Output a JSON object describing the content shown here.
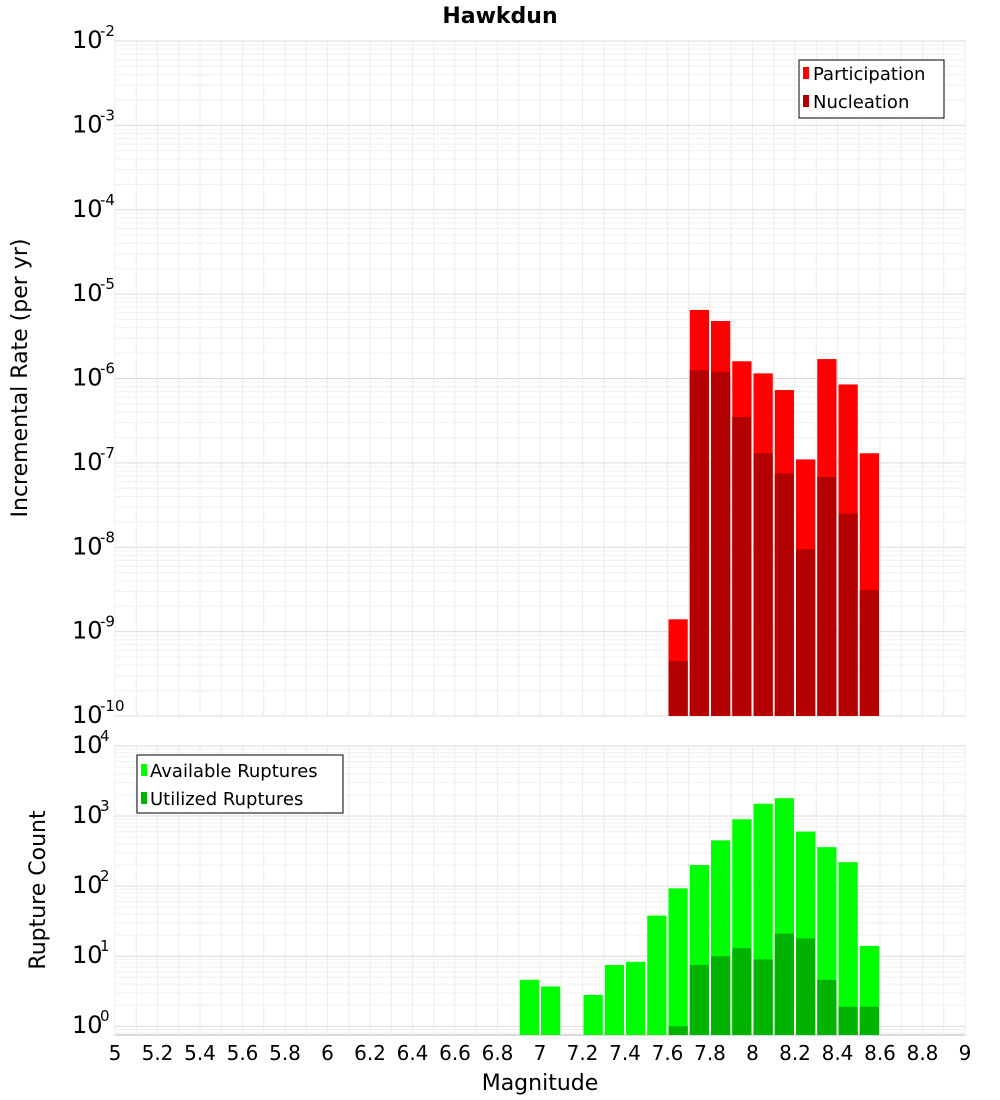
{
  "chart_data": [
    {
      "type": "bar",
      "title": "Hawkdun",
      "xlabel": "Magnitude",
      "ylabel": "Incremental Rate (per yr)",
      "yscale": "log",
      "xlim": [
        5,
        9
      ],
      "ylim": [
        1e-10,
        0.01
      ],
      "y_tick_labels": [
        {
          "base": "10",
          "exp": "-10"
        },
        {
          "base": "10",
          "exp": "-9"
        },
        {
          "base": "10",
          "exp": "-8"
        },
        {
          "base": "10",
          "exp": "-7"
        },
        {
          "base": "10",
          "exp": "-6"
        },
        {
          "base": "10",
          "exp": "-5"
        },
        {
          "base": "10",
          "exp": "-4"
        },
        {
          "base": "10",
          "exp": "-3"
        },
        {
          "base": "10",
          "exp": "-2"
        }
      ],
      "grid": true,
      "legend_position": "top-right",
      "bar_width": 0.1,
      "x": [
        7.65,
        7.75,
        7.85,
        7.95,
        8.05,
        8.15,
        8.25,
        8.35,
        8.45,
        8.55
      ],
      "series": [
        {
          "name": "Participation",
          "color": "#ff0000",
          "values": [
            1.4e-09,
            6.5e-06,
            4.8e-06,
            1.6e-06,
            1.15e-06,
            7.3e-07,
            1.1e-07,
            1.7e-06,
            8.5e-07,
            1.3e-07
          ]
        },
        {
          "name": "Nucleation",
          "color": "#b30000",
          "values": [
            4.5e-10,
            1.25e-06,
            1.2e-06,
            3.5e-07,
            1.3e-07,
            7.5e-08,
            9.5e-09,
            6.8e-08,
            2.5e-08,
            3.1e-09
          ]
        }
      ]
    },
    {
      "type": "bar",
      "xlabel": "Magnitude",
      "ylabel": "Rupture Count",
      "yscale": "log",
      "xlim": [
        5,
        9
      ],
      "ylim": [
        0.75,
        10000.0
      ],
      "y_tick_labels": [
        {
          "base": "10",
          "exp": "0"
        },
        {
          "base": "10",
          "exp": "1"
        },
        {
          "base": "10",
          "exp": "2"
        },
        {
          "base": "10",
          "exp": "3"
        },
        {
          "base": "10",
          "exp": "4"
        }
      ],
      "x_tick_labels": [
        "5",
        "5.2",
        "5.4",
        "5.6",
        "5.8",
        "6",
        "6.2",
        "6.4",
        "6.6",
        "6.8",
        "7",
        "7.2",
        "7.4",
        "7.6",
        "7.8",
        "8",
        "8.2",
        "8.4",
        "8.6",
        "8.8",
        "9"
      ],
      "grid": true,
      "legend_position": "top-left",
      "bar_width": 0.1,
      "x": [
        6.95,
        7.05,
        7.15,
        7.25,
        7.35,
        7.45,
        7.55,
        7.65,
        7.75,
        7.85,
        7.95,
        8.05,
        8.15,
        8.25,
        8.35,
        8.45,
        8.55
      ],
      "series": [
        {
          "name": "Available Ruptures",
          "color": "#00ff00",
          "values": [
            4.6,
            3.7,
            0,
            2.8,
            7.5,
            8.3,
            38,
            93,
            200,
            450,
            900,
            1500,
            1800,
            600,
            360,
            220,
            14
          ]
        },
        {
          "name": "Utilized Ruptures",
          "color": "#00b300",
          "values": [
            0,
            0,
            0,
            0,
            0,
            0,
            0,
            1,
            7.5,
            10,
            13,
            9,
            21,
            18,
            4.6,
            1.9,
            1.9
          ]
        }
      ]
    }
  ]
}
